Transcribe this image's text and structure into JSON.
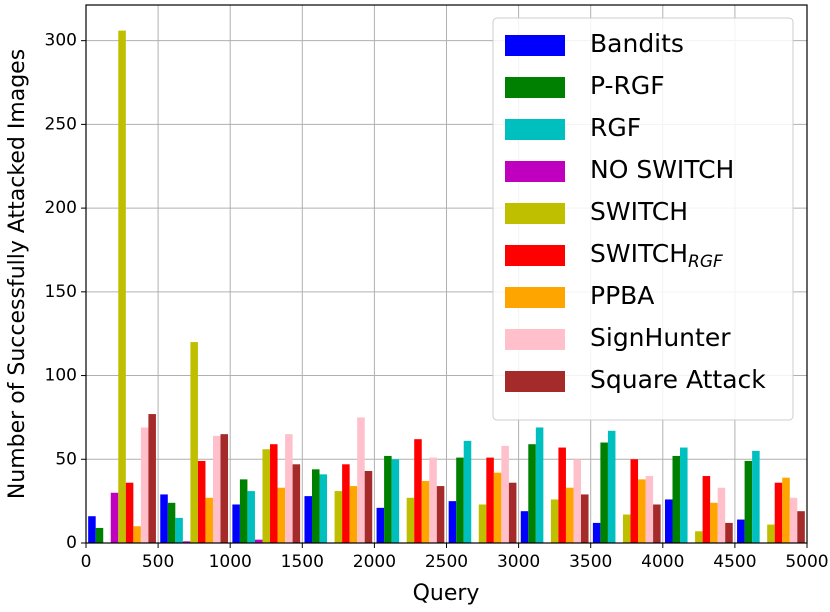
{
  "chart_data": {
    "type": "bar",
    "xlabel": "Query",
    "ylabel": "Number of Successfully Attacked Images",
    "x": [
      250,
      750,
      1250,
      1750,
      2250,
      2750,
      3250,
      3750,
      4250,
      4750
    ],
    "series": [
      {
        "name": "Bandits",
        "color": "#0000ff",
        "values": [
          16,
          29,
          23,
          28,
          21,
          25,
          19,
          12,
          26,
          14
        ]
      },
      {
        "name": "P-RGF",
        "color": "#008000",
        "values": [
          9,
          24,
          38,
          44,
          52,
          51,
          59,
          60,
          52,
          49
        ]
      },
      {
        "name": "RGF",
        "color": "#00bfbf",
        "values": [
          0,
          15,
          31,
          41,
          50,
          61,
          69,
          67,
          57,
          55
        ]
      },
      {
        "name": "NO SWITCH",
        "color": "#bf00bf",
        "values": [
          30,
          1,
          2,
          0,
          0,
          0,
          0,
          0,
          0,
          0
        ]
      },
      {
        "name": "SWITCH",
        "color": "#bfbf00",
        "values": [
          306,
          120,
          56,
          31,
          27,
          23,
          26,
          17,
          7,
          11
        ]
      },
      {
        "name": "SWITCH",
        "subscript": "RGF",
        "color": "#ff0000",
        "values": [
          36,
          49,
          59,
          47,
          62,
          51,
          57,
          50,
          40,
          36
        ]
      },
      {
        "name": "PPBA",
        "color": "#ffa500",
        "values": [
          10,
          27,
          33,
          34,
          37,
          42,
          33,
          38,
          24,
          39
        ]
      },
      {
        "name": "SignHunter",
        "color": "#ffc0cb",
        "values": [
          69,
          64,
          65,
          75,
          51,
          58,
          50,
          40,
          33,
          27
        ]
      },
      {
        "name": "Square Attack",
        "color": "#a52a2a",
        "values": [
          77,
          65,
          47,
          43,
          34,
          36,
          29,
          23,
          12,
          19
        ]
      }
    ],
    "xlim": [
      0,
      5000
    ],
    "xticks": [
      0,
      500,
      1000,
      1500,
      2000,
      2500,
      3000,
      3500,
      4000,
      4500,
      5000
    ],
    "ylim": [
      0,
      321.3
    ],
    "yticks": [
      0,
      50,
      100,
      150,
      200,
      250,
      300
    ],
    "grid": true,
    "legend": "upper right"
  }
}
